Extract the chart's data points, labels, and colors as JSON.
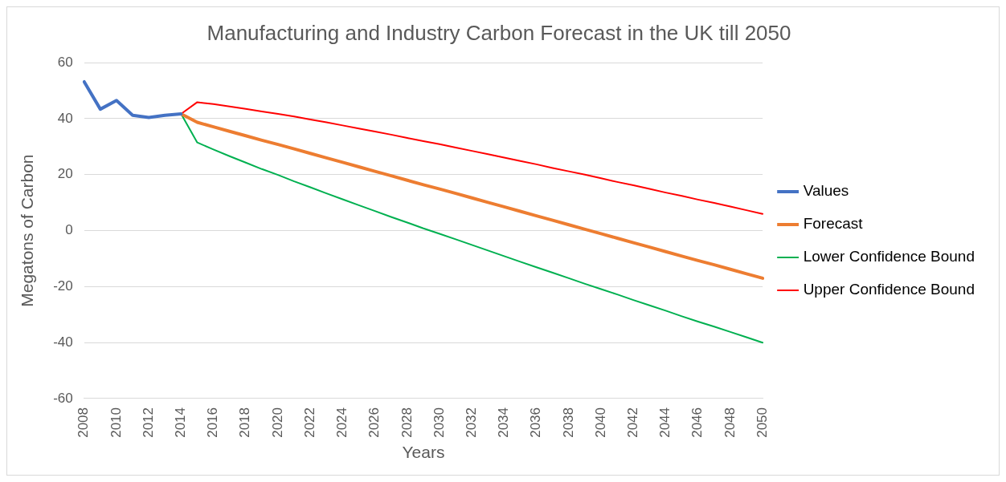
{
  "chart_data": {
    "type": "line",
    "title": "Manufacturing and Industry Carbon Forecast in the UK till 2050",
    "xlabel": "Years",
    "ylabel": "Megatons of Carbon",
    "categories": [
      "2008",
      null,
      "2010",
      null,
      "2012",
      null,
      "2014",
      null,
      "2016",
      null,
      "2018",
      null,
      "2020",
      null,
      "2022",
      null,
      "2024",
      null,
      "2026",
      null,
      "2028",
      null,
      "2030",
      null,
      "2032",
      null,
      "2034",
      null,
      "2036",
      null,
      "2038",
      null,
      "2040",
      null,
      "2042",
      null,
      "2044",
      null,
      "2046",
      null,
      "2048",
      null,
      "2050"
    ],
    "series": [
      {
        "name": "Values",
        "color": "#4472c4",
        "values": [
          53.2,
          43.4,
          46.5,
          41.2,
          40.4,
          41.2,
          41.7,
          null,
          null,
          null,
          null,
          null,
          null,
          null,
          null,
          null,
          null,
          null,
          null,
          null,
          null,
          null,
          null,
          null,
          null,
          null,
          null,
          null,
          null,
          null,
          null,
          null,
          null,
          null,
          null,
          null,
          null,
          null,
          null,
          null,
          null,
          null,
          null
        ]
      },
      {
        "name": "Forecast",
        "color": "#ed7d31",
        "values": [
          null,
          null,
          null,
          null,
          null,
          null,
          41.7,
          38.7,
          37.1,
          35.5,
          33.9,
          32.3,
          30.8,
          29.2,
          27.6,
          26.0,
          24.4,
          22.8,
          21.2,
          19.6,
          18.0,
          16.4,
          14.9,
          13.3,
          11.7,
          10.1,
          8.5,
          6.9,
          5.3,
          3.7,
          2.1,
          0.5,
          -1.1,
          -2.7,
          -4.3,
          -5.9,
          -7.5,
          -9.1,
          -10.7,
          -12.2,
          -13.8,
          -15.4,
          -17.0
        ]
      },
      {
        "name": "Lower Confidence Bound",
        "color": "#00b050",
        "values": [
          null,
          null,
          null,
          null,
          null,
          null,
          41.7,
          31.5,
          29.0,
          26.6,
          24.3,
          22.0,
          19.9,
          17.6,
          15.5,
          13.3,
          11.2,
          9.1,
          7.0,
          4.9,
          2.9,
          0.8,
          -1.1,
          -3.1,
          -5.1,
          -7.1,
          -9.1,
          -11.1,
          -13.1,
          -15.0,
          -17.0,
          -19.0,
          -20.9,
          -22.8,
          -24.8,
          -26.7,
          -28.6,
          -30.6,
          -32.5,
          -34.3,
          -36.2,
          -38.1,
          -40.0
        ]
      },
      {
        "name": "Upper Confidence Bound",
        "color": "#ff0000",
        "values": [
          null,
          null,
          null,
          null,
          null,
          null,
          41.7,
          45.9,
          45.2,
          44.4,
          43.5,
          42.6,
          41.7,
          40.8,
          39.7,
          38.7,
          37.6,
          36.5,
          35.4,
          34.3,
          33.1,
          32.0,
          30.9,
          29.7,
          28.5,
          27.3,
          26.1,
          24.9,
          23.7,
          22.4,
          21.2,
          20.0,
          18.7,
          17.4,
          16.2,
          14.9,
          13.6,
          12.4,
          11.1,
          9.9,
          8.6,
          7.3,
          6.0
        ]
      }
    ],
    "ylim": [
      -60,
      60
    ],
    "yticks": [
      -60,
      -40,
      -20,
      0,
      20,
      40,
      60
    ],
    "grid": "y",
    "legend": "right",
    "marker": "none",
    "line_style": "solid"
  }
}
